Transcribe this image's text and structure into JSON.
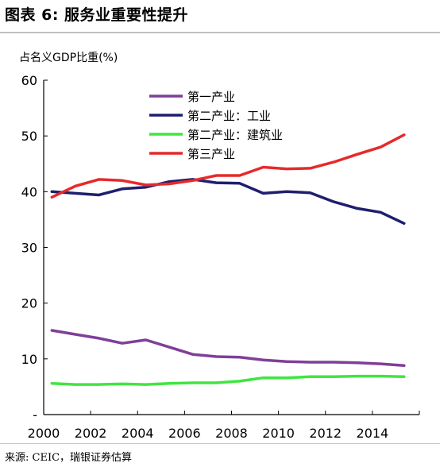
{
  "figure": {
    "title": "图表 6: 服务业重要性提升",
    "source": "来源: CEIC，瑞银证券估算"
  },
  "chart_data": {
    "type": "line",
    "title": "图表 6: 服务业重要性提升",
    "ylabel": "占名义GDP比重(%)",
    "xlabel": "",
    "xlim": [
      2000,
      2016
    ],
    "ylim": [
      0,
      60
    ],
    "yticks": [
      "-",
      "10",
      "20",
      "30",
      "40",
      "50",
      "60"
    ],
    "xticks": [
      "2000",
      "2002",
      "2004",
      "2006",
      "2008",
      "2010",
      "2012",
      "2014"
    ],
    "legend_position": "top-center",
    "grid": false,
    "x": [
      2000,
      2001,
      2002,
      2003,
      2004,
      2005,
      2006,
      2007,
      2008,
      2009,
      2010,
      2011,
      2012,
      2013,
      2014,
      2015
    ],
    "series": [
      {
        "name": "第一产业",
        "color": "#7f3f98",
        "values": [
          15.1,
          14.4,
          13.7,
          12.8,
          13.4,
          12.1,
          10.8,
          10.4,
          10.3,
          9.8,
          9.5,
          9.4,
          9.4,
          9.3,
          9.1,
          8.8
        ]
      },
      {
        "name": "第二产业：工业",
        "color": "#1f1f6e",
        "values": [
          40.0,
          39.7,
          39.4,
          40.5,
          40.8,
          41.8,
          42.2,
          41.6,
          41.5,
          39.7,
          40.0,
          39.8,
          38.2,
          37.0,
          36.3,
          34.3
        ]
      },
      {
        "name": "第二产业：建筑业",
        "color": "#3fe63f",
        "values": [
          5.6,
          5.4,
          5.4,
          5.5,
          5.4,
          5.6,
          5.7,
          5.7,
          6.0,
          6.6,
          6.6,
          6.8,
          6.8,
          6.9,
          6.9,
          6.8
        ]
      },
      {
        "name": "第三产业",
        "color": "#e62a2a",
        "values": [
          39.0,
          41.0,
          42.2,
          42.0,
          41.2,
          41.4,
          42.0,
          42.9,
          42.9,
          44.4,
          44.1,
          44.2,
          45.3,
          46.7,
          48.0,
          50.2
        ]
      }
    ]
  }
}
